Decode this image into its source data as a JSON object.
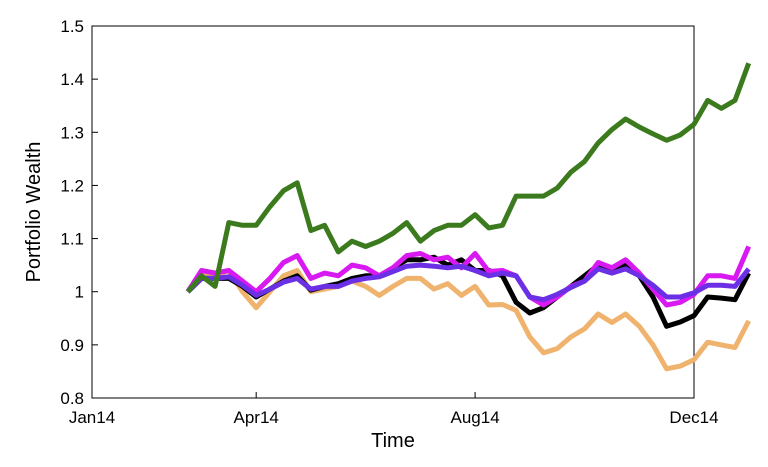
{
  "chart_data": {
    "type": "line",
    "title": "",
    "xlabel": "Time",
    "ylabel": "Portfolio Wealth",
    "xlim": [
      "2014-01",
      "2014-12"
    ],
    "ylim": [
      0.8,
      1.5
    ],
    "xticks": [
      {
        "label": "Jan14",
        "value": 0
      },
      {
        "label": "Apr14",
        "value": 3
      },
      {
        "label": "Aug14",
        "value": 7
      },
      {
        "label": "Dec14",
        "value": 11
      }
    ],
    "yticks": [
      0.8,
      0.9,
      1,
      1.1,
      1.2,
      1.3,
      1.4,
      1.5
    ],
    "ytick_labels": [
      "0.8",
      "0.9",
      "1",
      "1.1",
      "1.2",
      "1.3",
      "1.4",
      "1.5"
    ],
    "x_start": 1.75,
    "x_step": 0.25,
    "grid": false,
    "legend": "none",
    "series": [
      {
        "color": "#f0b36e",
        "values": [
          1.0,
          1.03,
          1.03,
          1.04,
          1.0,
          0.97,
          1.0,
          1.03,
          1.04,
          1.0,
          1.005,
          1.01,
          1.02,
          1.01,
          0.993,
          1.01,
          1.025,
          1.025,
          1.005,
          1.015,
          0.993,
          1.01,
          0.975,
          0.976,
          0.965,
          0.915,
          0.885,
          0.893,
          0.915,
          0.93,
          0.958,
          0.942,
          0.958,
          0.935,
          0.9,
          0.855,
          0.86,
          0.872,
          0.905,
          0.9,
          0.895,
          0.945
        ]
      },
      {
        "color": "#000000",
        "values": [
          1.0,
          1.025,
          1.025,
          1.025,
          1.01,
          0.99,
          1.005,
          1.02,
          1.03,
          1.003,
          1.01,
          1.015,
          1.025,
          1.03,
          1.03,
          1.045,
          1.06,
          1.06,
          1.065,
          1.05,
          1.06,
          1.04,
          1.04,
          1.03,
          0.98,
          0.96,
          0.97,
          0.99,
          1.01,
          1.03,
          1.05,
          1.04,
          1.05,
          1.03,
          0.99,
          0.935,
          0.943,
          0.955,
          0.99,
          0.988,
          0.985,
          1.035
        ]
      },
      {
        "color": "#d919f2",
        "values": [
          1.0,
          1.04,
          1.035,
          1.04,
          1.02,
          1.0,
          1.025,
          1.055,
          1.068,
          1.025,
          1.035,
          1.03,
          1.05,
          1.045,
          1.03,
          1.045,
          1.068,
          1.072,
          1.06,
          1.065,
          1.045,
          1.072,
          1.038,
          1.04,
          1.03,
          0.99,
          0.975,
          0.99,
          1.01,
          1.02,
          1.055,
          1.045,
          1.06,
          1.035,
          1.005,
          0.975,
          0.98,
          0.995,
          1.03,
          1.03,
          1.025,
          1.085
        ]
      },
      {
        "color": "#6b2fe6",
        "values": [
          1.0,
          1.025,
          1.025,
          1.028,
          1.012,
          0.993,
          1.005,
          1.018,
          1.025,
          1.005,
          1.01,
          1.01,
          1.02,
          1.025,
          1.028,
          1.038,
          1.048,
          1.05,
          1.048,
          1.045,
          1.048,
          1.04,
          1.03,
          1.035,
          1.03,
          0.99,
          0.985,
          0.995,
          1.008,
          1.02,
          1.043,
          1.035,
          1.043,
          1.03,
          1.012,
          0.99,
          0.99,
          0.998,
          1.012,
          1.012,
          1.01,
          1.043
        ]
      },
      {
        "color": "#3c7a1e",
        "values": [
          1.0,
          1.03,
          1.01,
          1.13,
          1.125,
          1.125,
          1.16,
          1.19,
          1.205,
          1.115,
          1.125,
          1.075,
          1.095,
          1.085,
          1.095,
          1.11,
          1.13,
          1.095,
          1.115,
          1.125,
          1.125,
          1.145,
          1.12,
          1.125,
          1.18,
          1.18,
          1.18,
          1.195,
          1.225,
          1.245,
          1.28,
          1.305,
          1.325,
          1.31,
          1.297,
          1.285,
          1.295,
          1.315,
          1.36,
          1.345,
          1.36,
          1.43
        ]
      }
    ]
  }
}
